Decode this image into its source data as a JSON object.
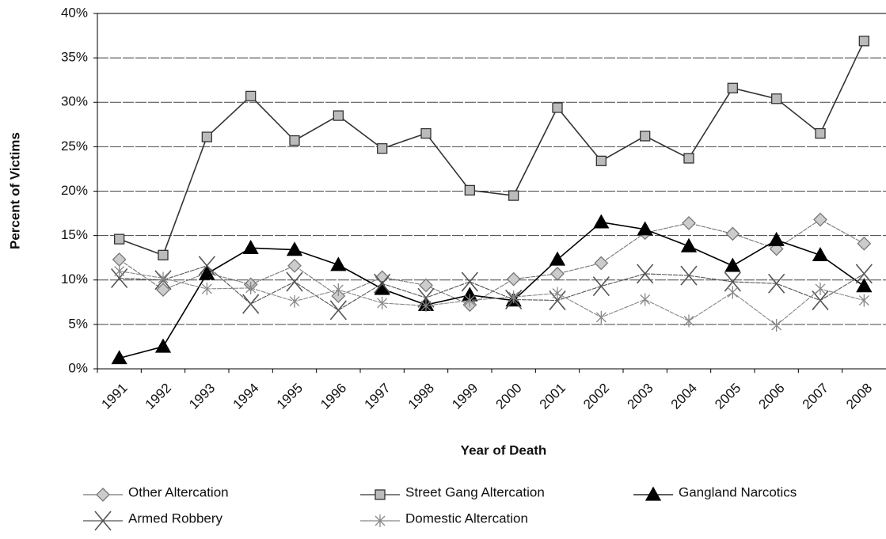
{
  "chart_data": {
    "type": "line",
    "x_label": "Year of Death",
    "y_label": "Percent of Victims",
    "categories": [
      "1991",
      "1992",
      "1993",
      "1994",
      "1995",
      "1996",
      "1997",
      "1998",
      "1999",
      "2000",
      "2001",
      "2002",
      "2003",
      "2004",
      "2005",
      "2006",
      "2007",
      "2008"
    ],
    "ylim": [
      0,
      40
    ],
    "yticks": [
      {
        "value": 0,
        "label": "0%"
      },
      {
        "value": 5,
        "label": "5%"
      },
      {
        "value": 10,
        "label": "10%"
      },
      {
        "value": 15,
        "label": "15%"
      },
      {
        "value": 20,
        "label": "20%"
      },
      {
        "value": 25,
        "label": "25%"
      },
      {
        "value": 30,
        "label": "30%"
      },
      {
        "value": 35,
        "label": "35%"
      },
      {
        "value": 40,
        "label": "40%"
      }
    ],
    "grid": true,
    "series": [
      {
        "name": "Other Altercation",
        "color": "#777777",
        "marker": "diamond",
        "values": [
          12.3,
          8.9,
          10.8,
          9.5,
          11.6,
          8.2,
          10.3,
          9.4,
          7.2,
          10.1,
          10.7,
          11.9,
          15.3,
          16.4,
          15.2,
          13.5,
          16.8,
          14.1
        ]
      },
      {
        "name": "Street Gang Altercation",
        "color": "#333333",
        "marker": "square",
        "values": [
          14.6,
          12.8,
          26.1,
          30.7,
          25.7,
          28.5,
          24.8,
          26.5,
          20.1,
          19.5,
          29.4,
          23.4,
          26.2,
          23.7,
          31.6,
          30.4,
          26.5,
          36.9
        ]
      },
      {
        "name": "Gangland Narcotics",
        "color": "#000000",
        "marker": "triangle",
        "values": [
          1.2,
          2.5,
          10.7,
          13.6,
          13.4,
          11.7,
          9.0,
          7.2,
          8.3,
          7.7,
          12.3,
          16.5,
          15.7,
          13.8,
          11.6,
          14.5,
          12.8,
          9.3
        ]
      },
      {
        "name": "Armed Robbery",
        "color": "#555555",
        "marker": "x",
        "values": [
          10.2,
          10.0,
          11.6,
          7.3,
          9.8,
          6.6,
          9.6,
          8.0,
          9.8,
          7.8,
          7.7,
          9.3,
          10.7,
          10.5,
          9.8,
          9.6,
          7.7,
          10.7
        ]
      },
      {
        "name": "Domestic Altercation",
        "color": "#888888",
        "marker": "asterisk",
        "values": [
          11.0,
          10.2,
          9.0,
          9.1,
          7.6,
          8.9,
          7.4,
          7.1,
          7.7,
          8.1,
          8.5,
          5.8,
          7.8,
          5.4,
          8.6,
          4.9,
          9.0,
          7.7
        ]
      }
    ]
  }
}
